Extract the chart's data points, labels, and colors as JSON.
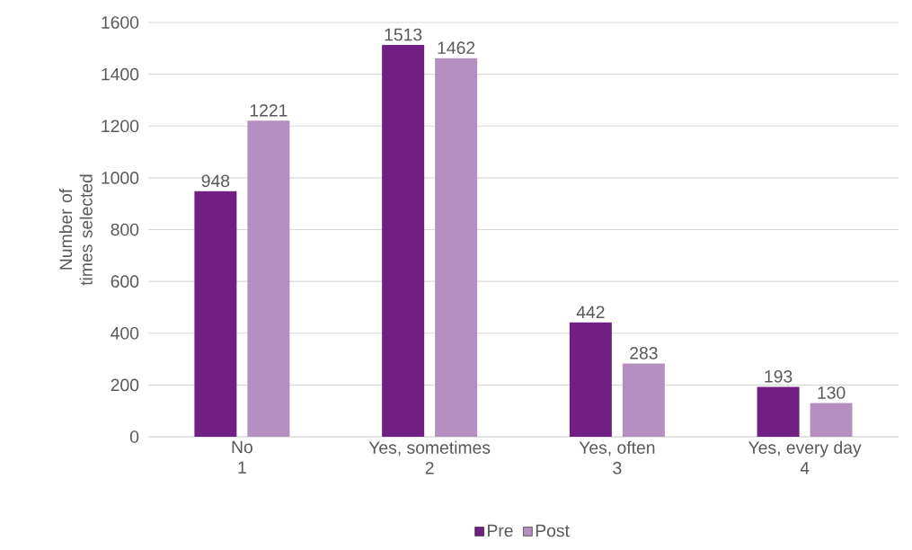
{
  "chart_data": {
    "type": "bar",
    "ylabel": "Number of times selected",
    "categories": [
      "No\n1",
      "Yes, sometimes\n2",
      "Yes, often\n3",
      "Yes, every day\n4"
    ],
    "series": [
      {
        "name": "Pre",
        "color": "#702082",
        "values": [
          948,
          1513,
          442,
          193
        ]
      },
      {
        "name": "Post",
        "color": "#b48fc0",
        "values": [
          1221,
          1462,
          283,
          130
        ]
      }
    ],
    "ylim": [
      0,
      1600
    ],
    "yticks": [
      0,
      200,
      400,
      600,
      800,
      1000,
      1200,
      1400,
      1600
    ],
    "grid": "y",
    "legend": "bottom",
    "data_labels": true
  }
}
